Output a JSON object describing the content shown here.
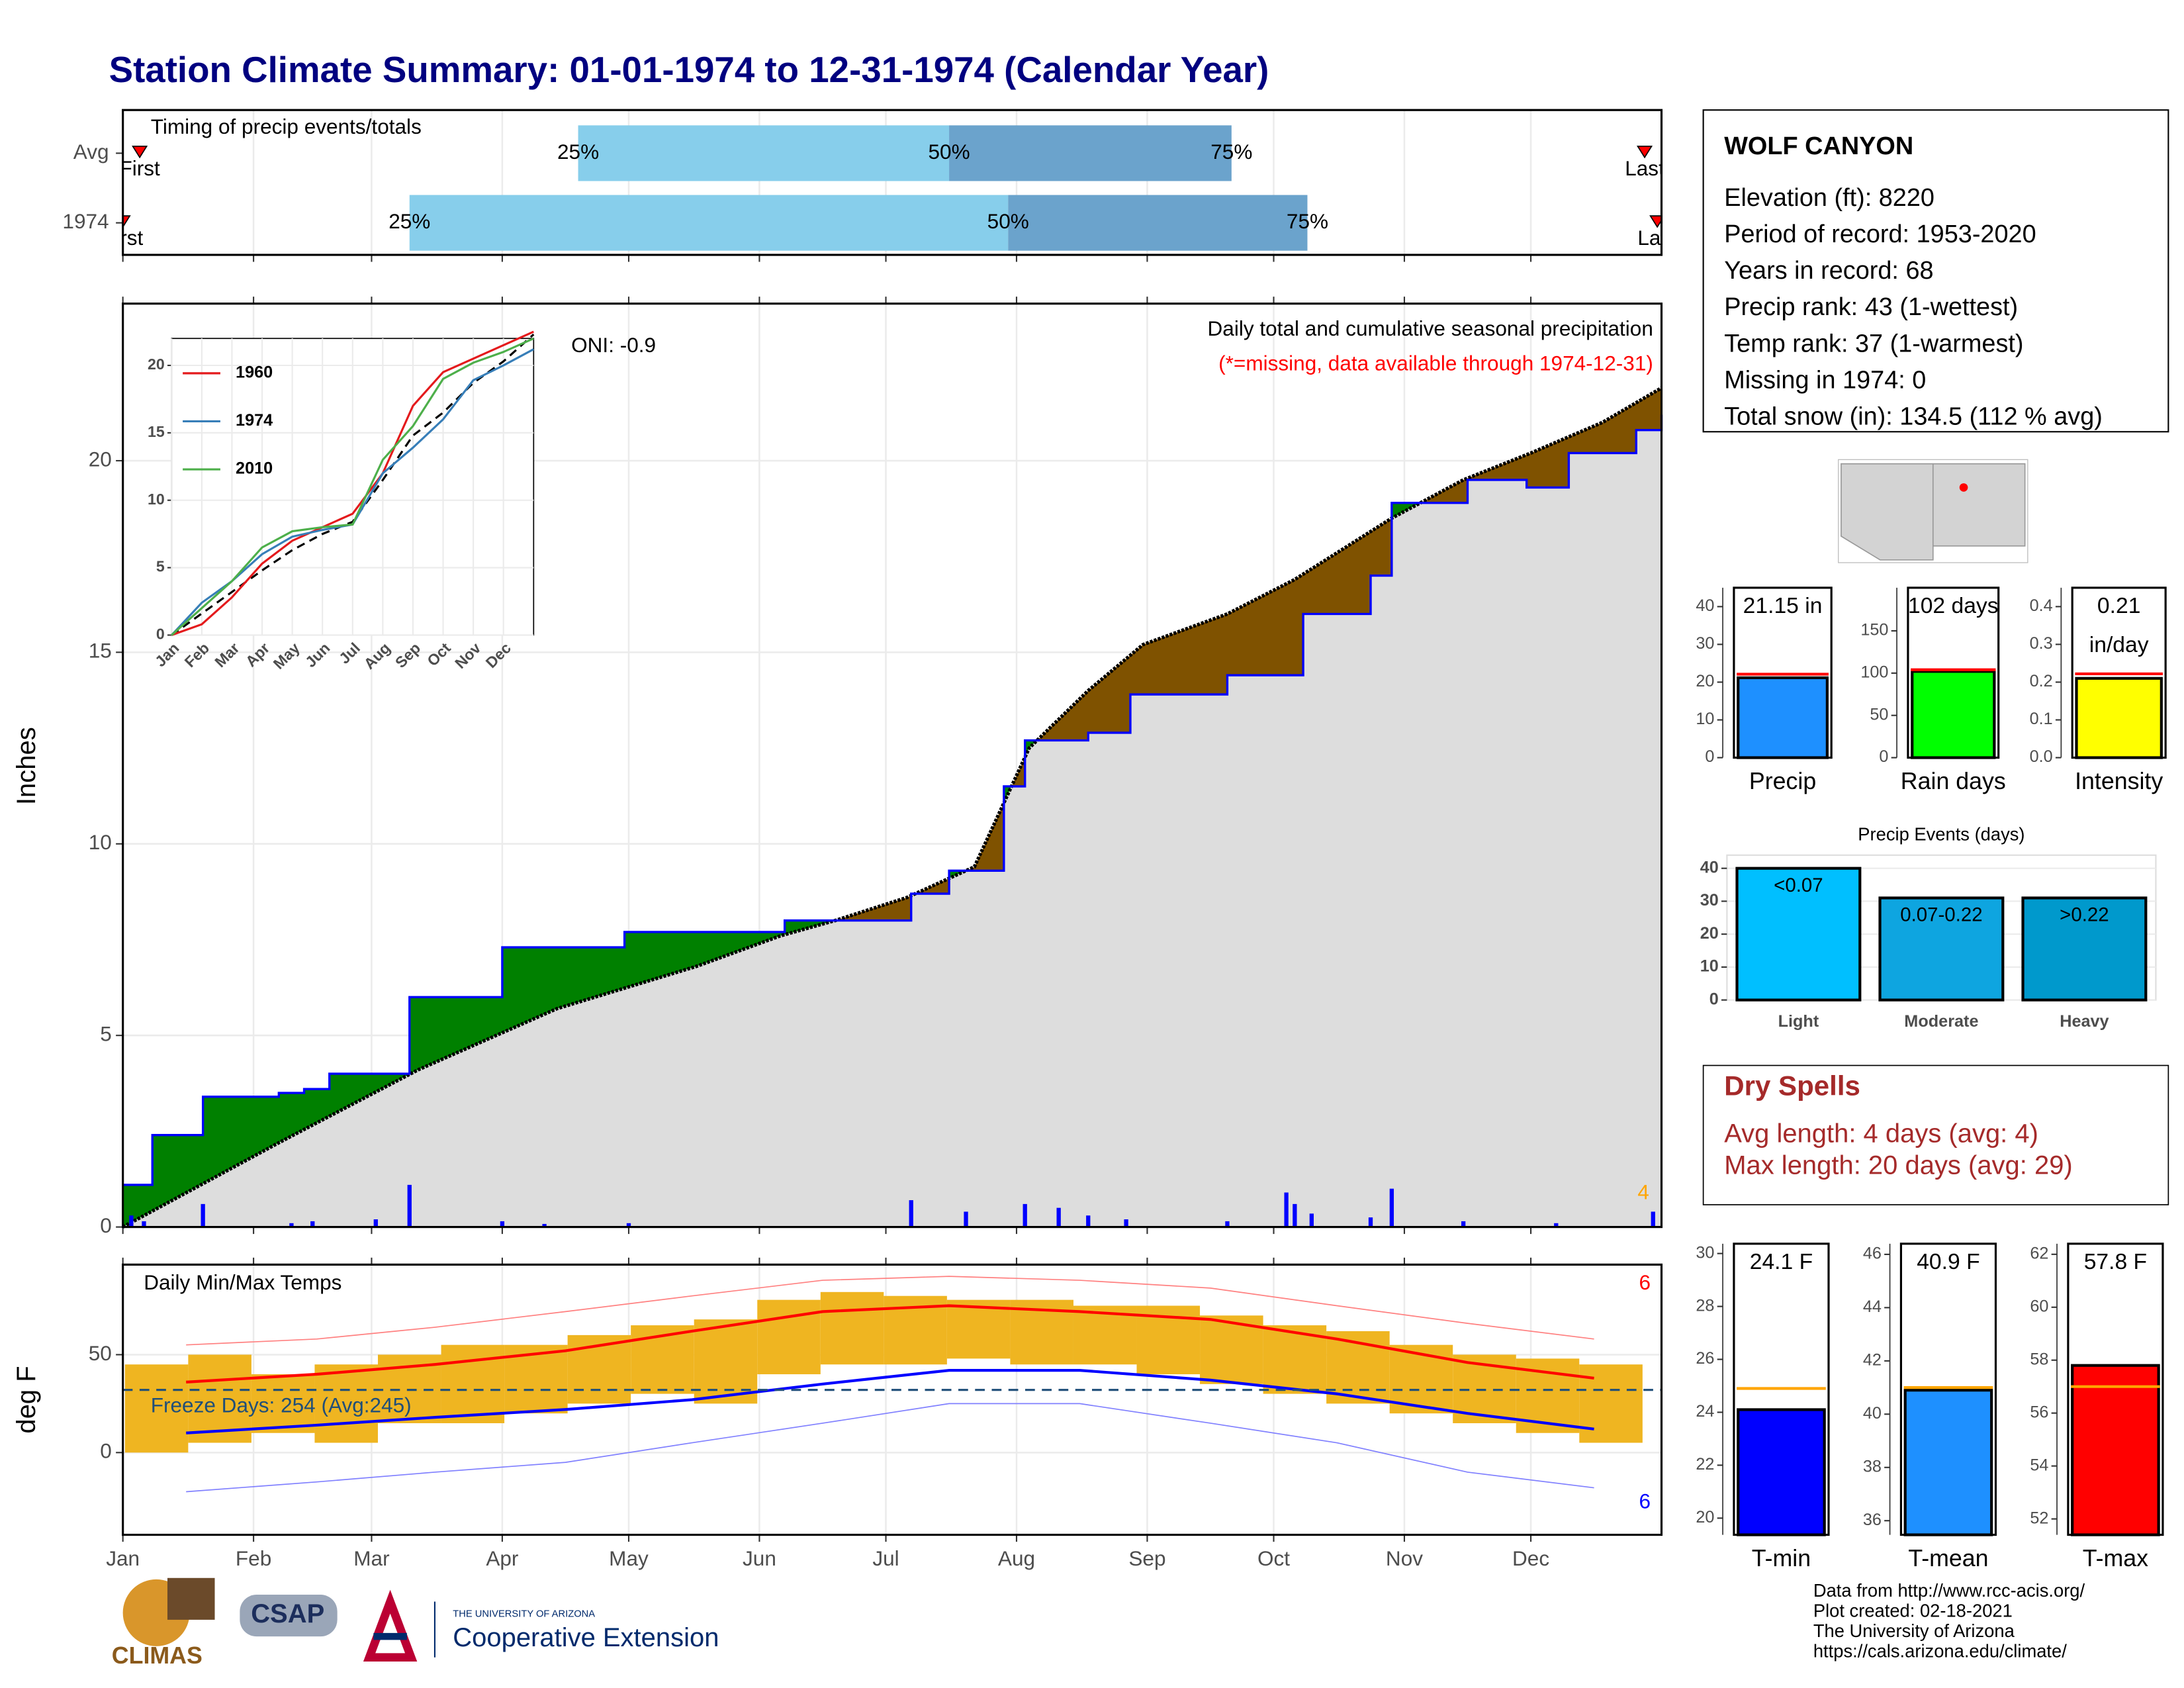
{
  "title": "Station Climate Summary: 01-01-1974 to 12-31-1974 (Calendar Year)",
  "station": {
    "name": "WOLF CANYON",
    "lines": [
      "Elevation (ft): 8220",
      "Period of record: 1953-2020",
      "Years in record: 68",
      "Precip rank: 43 (1-wettest)",
      "Temp rank: 37 (1-warmest)",
      "Missing in 1974: 0",
      "Total snow (in): 134.5 (112 % avg)"
    ]
  },
  "dry_spells": {
    "title": "Dry Spells",
    "lines": [
      "Avg length: 4 days (avg: 4)",
      "Max length: 20 days (avg: 29)"
    ]
  },
  "footer": [
    "Data from http://www.rcc-acis.org/",
    "Plot created: 02-18-2021",
    "The University of Arizona",
    "https://cals.arizona.edu/climate/"
  ],
  "logos": [
    "CLIMAS",
    "CSAP",
    "THE UNIVERSITY OF ARIZONA",
    "Cooperative Extension"
  ],
  "chart_data": [
    {
      "type": "timeline",
      "title": "Timing of precip events/totals",
      "categories": [
        "Avg",
        "1974"
      ],
      "first": [
        4,
        0
      ],
      "q25": [
        108,
        68
      ],
      "q50": [
        196,
        210
      ],
      "q75": [
        263,
        281
      ],
      "last": [
        361,
        364
      ],
      "quantile_labels": [
        "25%",
        "50%",
        "75%"
      ],
      "first_label": "First",
      "last_label": "Last",
      "colors": [
        "#87ceeb",
        "#6ba3cc"
      ],
      "xlim": [
        0,
        365
      ],
      "xticks": [
        0,
        31,
        59,
        90,
        120,
        151,
        181,
        212,
        243,
        273,
        304,
        334
      ]
    },
    {
      "type": "cumulative",
      "title": "Daily total and cumulative seasonal precipitation",
      "subtitle": "(*=missing, data available through 1974-12-31)",
      "annotation": "ONI: -0.9",
      "y_label": "Inches",
      "max_label": "4",
      "xlim": [
        0,
        365
      ],
      "xticks": [
        0,
        31,
        59,
        90,
        120,
        151,
        181,
        212,
        243,
        273,
        304,
        334
      ],
      "ylim": [
        0,
        24.1
      ],
      "yticks": [
        0,
        5,
        10,
        15,
        20
      ],
      "grid": true,
      "series": [
        {
          "color": "#0000ff",
          "step": true,
          "x": [
            0,
            7,
            19,
            37,
            43,
            49,
            68,
            90,
            119,
            157,
            187,
            196,
            209,
            214,
            229,
            239,
            262,
            280,
            296,
            301,
            319,
            333,
            343,
            359,
            365
          ],
          "values": [
            1.1,
            2.4,
            3.4,
            3.5,
            3.6,
            4.0,
            6.0,
            7.3,
            7.7,
            8.0,
            8.7,
            9.3,
            11.5,
            12.7,
            12.9,
            13.9,
            14.4,
            16.0,
            17.0,
            18.9,
            19.5,
            19.3,
            20.2,
            20.8,
            21.2
          ]
        },
        {
          "color": "#000000",
          "x": [
            0,
            37,
            70,
            103,
            136,
            156,
            169,
            186,
            202,
            215,
            229,
            242,
            262,
            278,
            301,
            318,
            334,
            351,
            365
          ],
          "values": [
            0,
            2.2,
            4.1,
            5.7,
            6.8,
            7.6,
            8.0,
            8.6,
            9.4,
            12.5,
            14.0,
            15.2,
            16.0,
            16.9,
            18.5,
            19.5,
            20.2,
            21.0,
            21.9
          ]
        }
      ],
      "above_color": "#008000",
      "below_color": "#7f5200",
      "fill_color": "#dddddd",
      "daily": {
        "color": "#0000ff",
        "x": [
          2,
          5,
          19,
          40,
          45,
          60,
          68,
          90,
          100,
          120,
          187,
          200,
          214,
          222,
          229,
          238,
          262,
          276,
          278,
          282,
          296,
          301,
          318,
          340,
          363
        ],
        "values": [
          0.3,
          0.15,
          0.6,
          0.1,
          0.15,
          0.2,
          1.1,
          0.15,
          0.08,
          0.1,
          0.7,
          0.4,
          0.6,
          0.5,
          0.3,
          0.2,
          0.15,
          0.9,
          0.6,
          0.35,
          0.25,
          1.0,
          0.15,
          0.1,
          0.4
        ]
      }
    },
    {
      "type": "inset_line",
      "categories": [
        "Jan",
        "Feb",
        "Mar",
        "Apr",
        "May",
        "Jun",
        "Jul",
        "Aug",
        "Sep",
        "Oct",
        "Nov",
        "Dec"
      ],
      "x": [
        0,
        1,
        2,
        3,
        4,
        5,
        6,
        7,
        8,
        9,
        10,
        11,
        12
      ],
      "xlim": [
        0,
        12
      ],
      "ylim": [
        0,
        22
      ],
      "yticks": [
        0,
        5,
        10,
        15,
        20
      ],
      "series": [
        {
          "name": "1960",
          "color": "#e41a1c",
          "values": [
            0,
            0.8,
            2.8,
            5.3,
            7,
            8,
            9,
            12,
            17,
            19.5,
            20.5,
            21.5,
            22.5
          ]
        },
        {
          "name": "1974",
          "color": "#377eb8",
          "values": [
            0,
            2.4,
            4,
            6,
            7.3,
            7.8,
            8.2,
            12,
            13.9,
            16,
            18.9,
            20,
            21.2
          ]
        },
        {
          "name": "2010",
          "color": "#4daf4a",
          "values": [
            0,
            2,
            4,
            6.5,
            7.7,
            8,
            8.2,
            13,
            15.5,
            19,
            20.2,
            21,
            22
          ]
        }
      ],
      "average": {
        "color": "#000000",
        "values": [
          0,
          1.6,
          3.2,
          4.8,
          6.3,
          7.5,
          8.4,
          11.5,
          14.8,
          16.5,
          18.7,
          20.3,
          22.3
        ]
      }
    },
    {
      "type": "range_bar",
      "title": "Daily Min/Max Temps",
      "y_label": "deg F",
      "annotation": "Freeze Days: 254 (Avg:245)",
      "freeze_line": 32,
      "count_labels": [
        "6",
        "6"
      ],
      "xlim": [
        0,
        365
      ],
      "ylim": [
        -42,
        96
      ],
      "yticks": [
        0,
        50
      ],
      "grid": true,
      "xticks": [
        {
          "value": 0,
          "label": "Jan"
        },
        {
          "value": 31,
          "label": "Feb"
        },
        {
          "value": 59,
          "label": "Mar"
        },
        {
          "value": 90,
          "label": "Apr"
        },
        {
          "value": 120,
          "label": "May"
        },
        {
          "value": 151,
          "label": "Jun"
        },
        {
          "value": 181,
          "label": "Jul"
        },
        {
          "value": 212,
          "label": "Aug"
        },
        {
          "value": 243,
          "label": "Sep"
        },
        {
          "value": 273,
          "label": "Oct"
        },
        {
          "value": 304,
          "label": "Nov"
        },
        {
          "value": 334,
          "label": "Dec"
        }
      ],
      "bar_color": "#efb521",
      "bars": {
        "x": [
          8,
          23,
          38,
          53,
          68,
          83,
          98,
          113,
          128,
          143,
          158,
          173,
          188,
          203,
          218,
          233,
          248,
          263,
          278,
          293,
          308,
          323,
          338,
          353
        ],
        "low": [
          0,
          5,
          10,
          5,
          15,
          15,
          20,
          25,
          30,
          25,
          40,
          45,
          45,
          48,
          45,
          45,
          40,
          35,
          30,
          25,
          20,
          15,
          10,
          5
        ],
        "high": [
          45,
          50,
          40,
          45,
          50,
          55,
          55,
          60,
          65,
          68,
          78,
          82,
          80,
          78,
          78,
          75,
          75,
          70,
          65,
          62,
          55,
          50,
          48,
          45
        ]
      },
      "curve_x": [
        15,
        46,
        74,
        105,
        135,
        166,
        196,
        227,
        258,
        288,
        319,
        349
      ],
      "curves": [
        {
          "color": "#ff0000",
          "width": 2,
          "values": [
            36,
            40,
            45,
            52,
            62,
            72,
            75,
            72,
            68,
            58,
            46,
            38
          ]
        },
        {
          "color": "#0000ff",
          "width": 2,
          "values": [
            10,
            14,
            18,
            22,
            27,
            35,
            42,
            42,
            37,
            30,
            20,
            12
          ]
        },
        {
          "color": "#ff8080",
          "width": 0.8,
          "values": [
            55,
            58,
            64,
            72,
            80,
            88,
            90,
            88,
            84,
            75,
            66,
            58
          ]
        },
        {
          "color": "#8080ff",
          "width": 0.8,
          "values": [
            -20,
            -15,
            -10,
            -5,
            5,
            15,
            25,
            25,
            15,
            5,
            -10,
            -18
          ]
        }
      ]
    },
    {
      "type": "summary_bar",
      "categories": [
        "Precip"
      ],
      "values": [
        21.15
      ],
      "value_labels": [
        "21.15 in"
      ],
      "average": 22.1,
      "average_color": "#ff0000",
      "color": "#1e90ff",
      "ylim": [
        0,
        45
      ],
      "yticks": [
        0,
        10,
        20,
        30,
        40
      ]
    },
    {
      "type": "summary_bar",
      "categories": [
        "Rain days"
      ],
      "values": [
        102
      ],
      "value_labels": [
        "102 days"
      ],
      "average": 104,
      "average_color": "#ff0000",
      "color": "#00ff00",
      "ylim": [
        0,
        201
      ],
      "yticks": [
        0,
        50,
        100,
        150
      ]
    },
    {
      "type": "summary_bar",
      "categories": [
        "Intensity"
      ],
      "values": [
        0.21
      ],
      "value_labels": [
        "0.21"
      ],
      "value_unit": "in/day",
      "average": 0.222,
      "average_color": "#ff0000",
      "color": "#ffff00",
      "ylim": [
        0,
        0.45
      ],
      "yticks": [
        {
          "value": 0,
          "label": "0.0"
        },
        0.1,
        0.2,
        0.3,
        0.4
      ]
    },
    {
      "type": "bar",
      "title": "Precip Events (days)",
      "categories": [
        "Light",
        "Moderate",
        "Heavy"
      ],
      "values": [
        40,
        31,
        31
      ],
      "bin_labels": [
        "<0.07",
        "0.07-0.22",
        ">0.22"
      ],
      "colors": [
        "#00bfff",
        "#0ea5e0",
        "#0099cc"
      ],
      "ylim": [
        0,
        44
      ],
      "yticks": [
        0,
        10,
        20,
        30,
        40
      ],
      "grid": true
    },
    {
      "type": "summary_bar",
      "categories": [
        "T-min"
      ],
      "values": [
        24.1
      ],
      "value_labels": [
        "24.1 F"
      ],
      "average": 24.9,
      "average_color": "#ffa500",
      "color": "#0000ff",
      "ylim": [
        19.37,
        30.37
      ],
      "yticks": [
        20,
        22,
        24,
        26,
        28,
        30
      ]
    },
    {
      "type": "summary_bar",
      "categories": [
        "T-mean"
      ],
      "values": [
        40.9
      ],
      "value_labels": [
        "40.9 F"
      ],
      "average": 41.0,
      "average_color": "#ffa500",
      "color": "#1e90ff",
      "ylim": [
        35.47,
        46.4
      ],
      "yticks": [
        36,
        38,
        40,
        42,
        44,
        46
      ]
    },
    {
      "type": "summary_bar",
      "categories": [
        "T-max"
      ],
      "values": [
        57.8
      ],
      "value_labels": [
        "57.8 F"
      ],
      "average": 57.0,
      "average_color": "#ffa500",
      "color": "#ff0000",
      "ylim": [
        51.4,
        62.4
      ],
      "yticks": [
        52,
        54,
        56,
        58,
        60,
        62
      ]
    }
  ]
}
